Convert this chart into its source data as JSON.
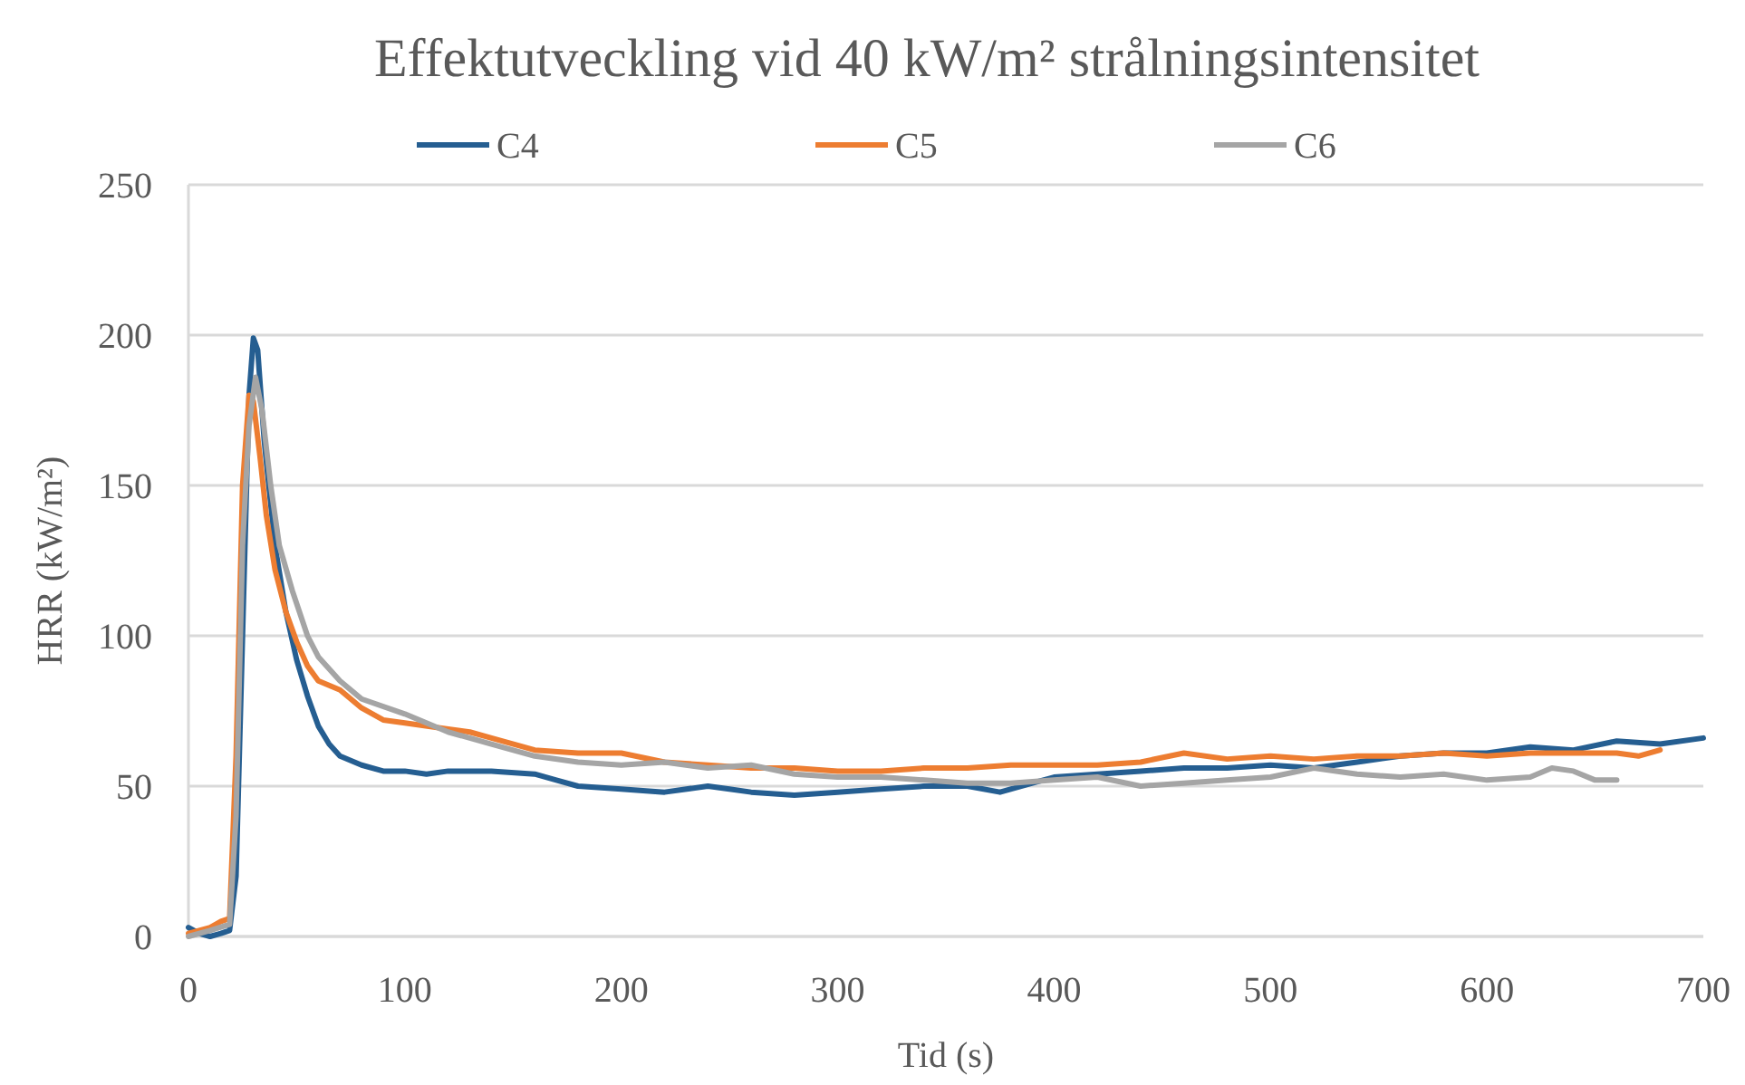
{
  "chart_data": {
    "type": "line",
    "title": "Effektutveckling vid 40 kW/m² strålningsintensitet",
    "xlabel": "Tid (s)",
    "ylabel": "HRR (kW/m²)",
    "xlim": [
      0,
      700
    ],
    "xticks": [
      0,
      100,
      200,
      300,
      400,
      500,
      600,
      700
    ],
    "ylim": [
      0,
      250
    ],
    "yticks": [
      0,
      50,
      100,
      150,
      200,
      250
    ],
    "grid": "y",
    "legend": "top",
    "marker": "none",
    "line_style": "solid",
    "series": [
      {
        "name": "C4",
        "color": "#255e91",
        "x": [
          0,
          5,
          10,
          15,
          19,
          22,
          25,
          28,
          30,
          32,
          35,
          40,
          45,
          50,
          55,
          60,
          65,
          70,
          80,
          90,
          100,
          110,
          120,
          140,
          160,
          170,
          180,
          200,
          220,
          240,
          250,
          260,
          280,
          300,
          320,
          340,
          360,
          375,
          390,
          400,
          420,
          440,
          460,
          480,
          500,
          520,
          540,
          560,
          580,
          600,
          620,
          640,
          660,
          680,
          700
        ],
        "values": [
          3,
          1,
          0,
          1,
          2,
          20,
          100,
          180,
          199,
          195,
          165,
          130,
          108,
          92,
          80,
          70,
          64,
          60,
          57,
          55,
          55,
          54,
          55,
          55,
          54,
          52,
          50,
          49,
          48,
          50,
          49,
          48,
          47,
          48,
          49,
          50,
          50,
          48,
          51,
          53,
          54,
          55,
          56,
          56,
          57,
          56,
          58,
          60,
          61,
          61,
          63,
          62,
          65,
          64,
          66
        ]
      },
      {
        "name": "C5",
        "color": "#ed7d31",
        "x": [
          0,
          10,
          15,
          19,
          22,
          25,
          28,
          30,
          33,
          36,
          40,
          45,
          50,
          55,
          60,
          70,
          80,
          90,
          100,
          120,
          130,
          140,
          160,
          180,
          200,
          220,
          240,
          260,
          280,
          300,
          320,
          340,
          360,
          380,
          400,
          420,
          440,
          460,
          480,
          500,
          520,
          540,
          560,
          580,
          600,
          620,
          640,
          660,
          670,
          680
        ],
        "values": [
          1,
          3,
          5,
          6,
          60,
          150,
          180,
          178,
          160,
          140,
          122,
          108,
          98,
          90,
          85,
          82,
          76,
          72,
          71,
          69,
          68,
          66,
          62,
          61,
          61,
          58,
          57,
          56,
          56,
          55,
          55,
          56,
          56,
          57,
          57,
          57,
          58,
          61,
          59,
          60,
          59,
          60,
          60,
          61,
          60,
          61,
          61,
          61,
          60,
          62
        ]
      },
      {
        "name": "C6",
        "color": "#a5a5a5",
        "x": [
          0,
          10,
          19,
          22,
          25,
          28,
          31,
          34,
          38,
          42,
          48,
          55,
          60,
          70,
          80,
          100,
          120,
          140,
          160,
          180,
          200,
          220,
          240,
          260,
          280,
          300,
          320,
          340,
          360,
          380,
          400,
          420,
          440,
          460,
          480,
          500,
          520,
          540,
          560,
          580,
          600,
          620,
          630,
          640,
          650,
          660
        ],
        "values": [
          0,
          2,
          4,
          40,
          130,
          170,
          186,
          175,
          150,
          130,
          115,
          100,
          93,
          85,
          79,
          74,
          68,
          64,
          60,
          58,
          57,
          58,
          56,
          57,
          54,
          53,
          53,
          52,
          51,
          51,
          52,
          53,
          50,
          51,
          52,
          53,
          56,
          54,
          53,
          54,
          52,
          53,
          56,
          55,
          52,
          52
        ]
      }
    ]
  }
}
